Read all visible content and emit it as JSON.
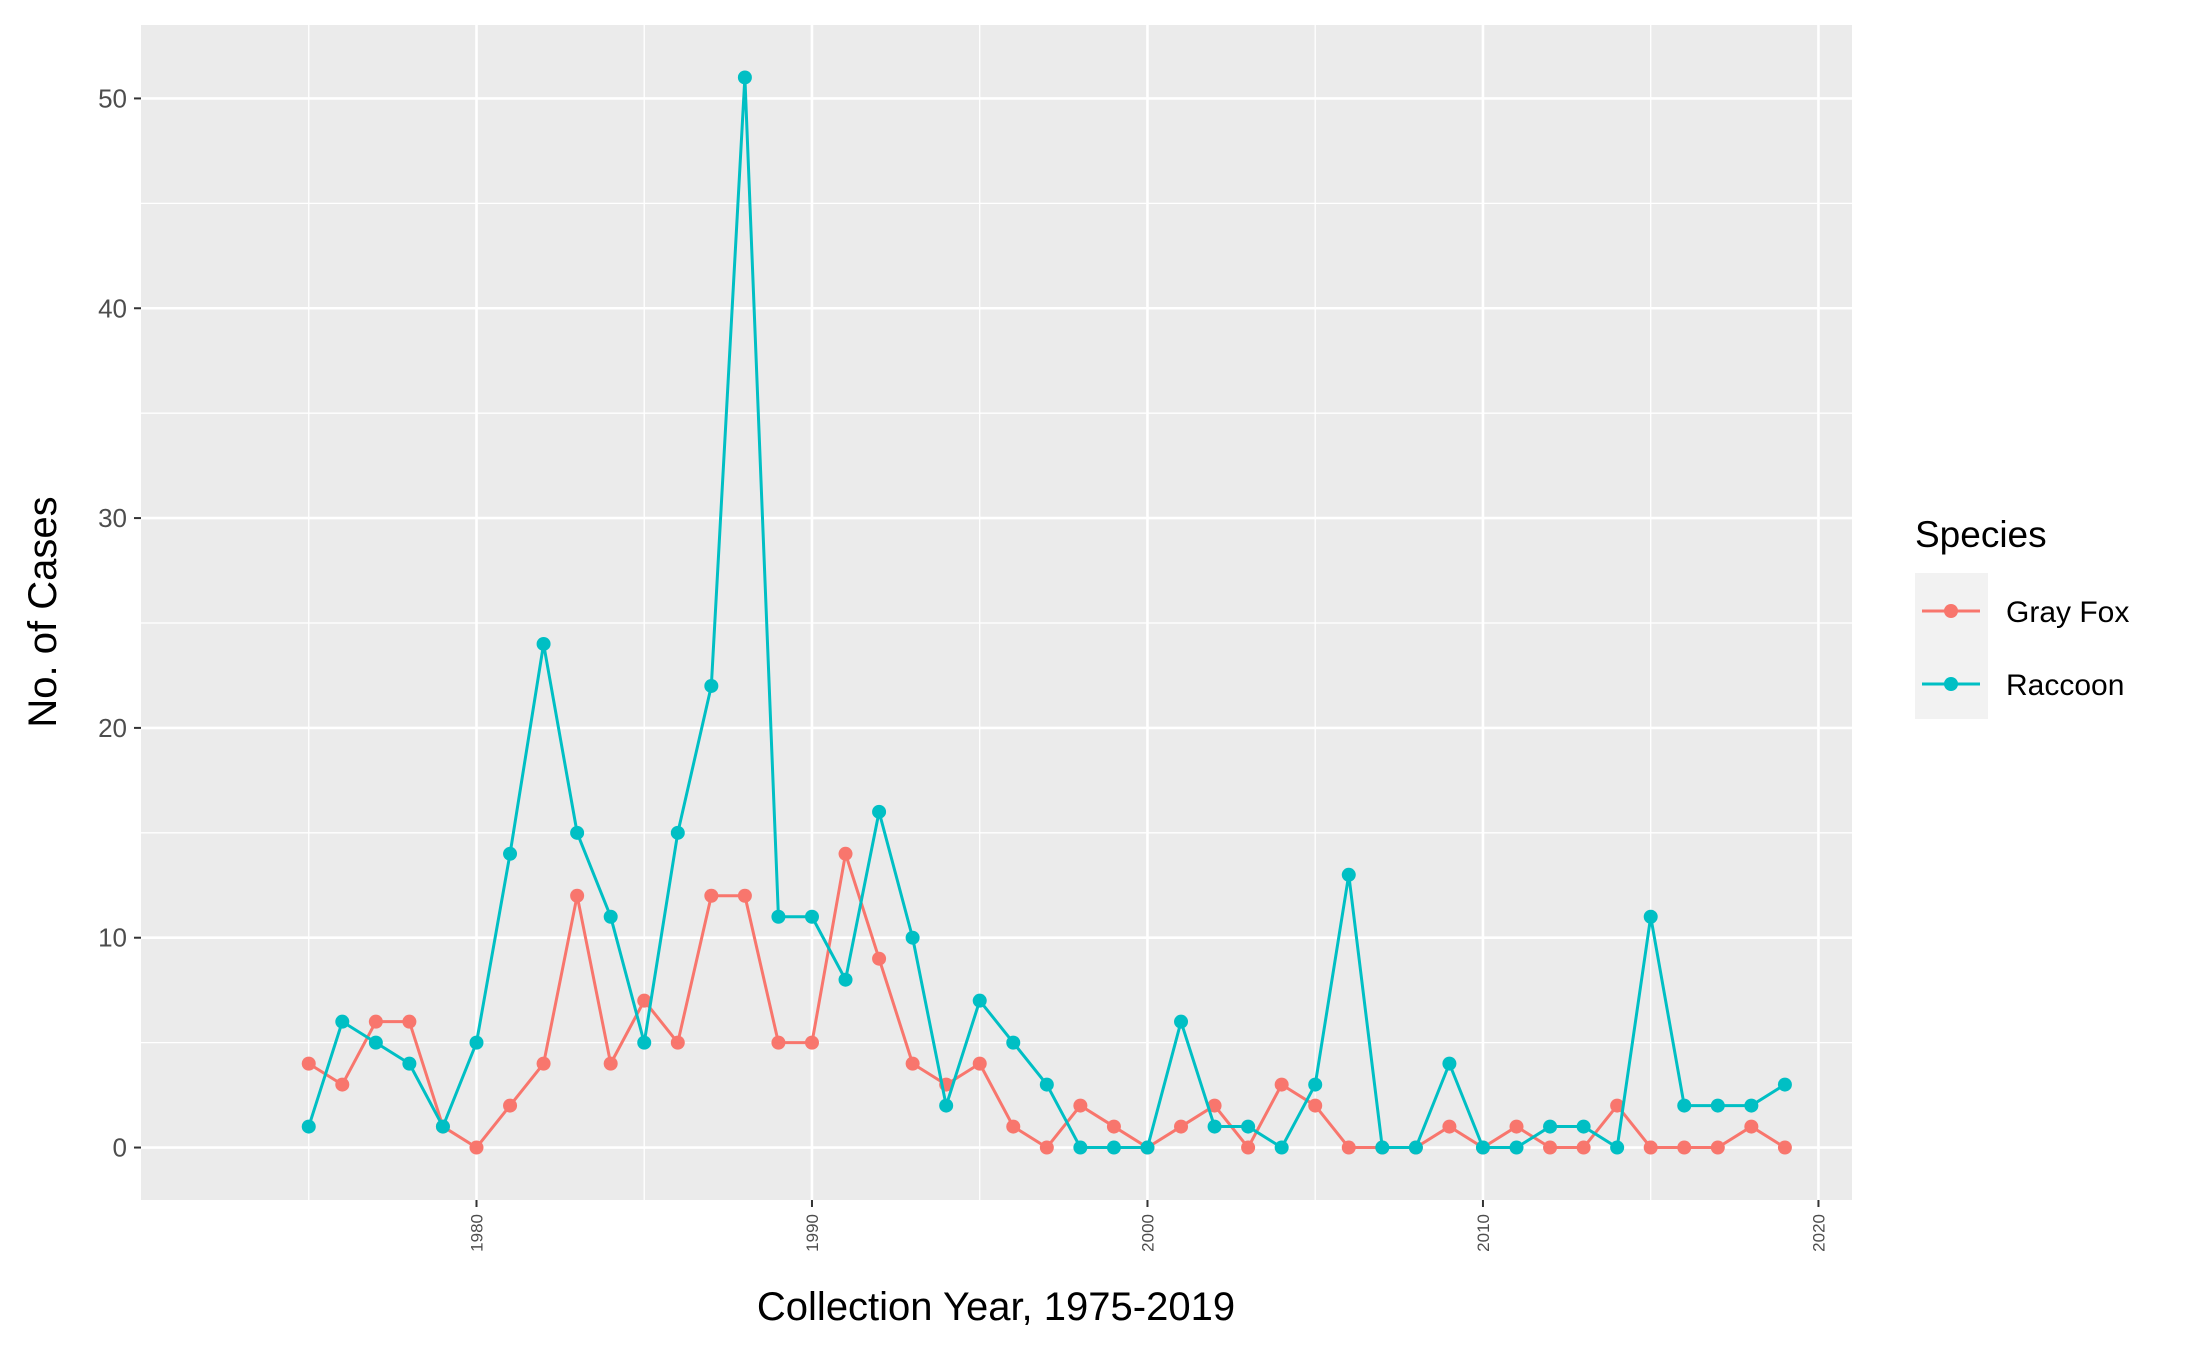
{
  "chart_data": {
    "type": "line",
    "xlabel": "Collection Year, 1975-2019",
    "ylabel": "No. of Cases",
    "x_ticks": [
      "1980",
      "1990",
      "2000",
      "2010",
      "2020"
    ],
    "y_ticks": [
      "0",
      "10",
      "20",
      "30",
      "40",
      "50"
    ],
    "xlim": [
      1970,
      2021
    ],
    "ylim": [
      -2.5,
      53.5
    ],
    "grid": true,
    "legend_position": "right",
    "legend_title": "Species",
    "x": [
      1975,
      1976,
      1977,
      1978,
      1979,
      1980,
      1981,
      1982,
      1983,
      1984,
      1985,
      1986,
      1987,
      1988,
      1989,
      1990,
      1991,
      1992,
      1993,
      1994,
      1995,
      1996,
      1997,
      1998,
      1999,
      2000,
      2001,
      2002,
      2003,
      2004,
      2005,
      2006,
      2007,
      2008,
      2009,
      2010,
      2011,
      2012,
      2013,
      2014,
      2015,
      2016,
      2017,
      2018,
      2019
    ],
    "series": [
      {
        "name": "Gray Fox",
        "color": "#F8766D",
        "values": [
          4,
          3,
          6,
          6,
          1,
          0,
          2,
          4,
          12,
          4,
          7,
          5,
          12,
          12,
          5,
          5,
          14,
          9,
          4,
          3,
          4,
          1,
          0,
          2,
          1,
          0,
          1,
          2,
          0,
          3,
          2,
          0,
          0,
          0,
          1,
          0,
          1,
          0,
          0,
          2,
          0,
          0,
          0,
          1,
          0
        ]
      },
      {
        "name": "Raccoon",
        "color": "#00BFC4",
        "values": [
          1,
          6,
          5,
          4,
          1,
          5,
          14,
          24,
          15,
          11,
          5,
          15,
          22,
          51,
          11,
          11,
          8,
          16,
          10,
          2,
          7,
          5,
          3,
          0,
          0,
          0,
          6,
          1,
          1,
          0,
          3,
          13,
          0,
          0,
          4,
          0,
          0,
          1,
          1,
          0,
          11,
          2,
          2,
          2,
          3
        ]
      }
    ]
  }
}
